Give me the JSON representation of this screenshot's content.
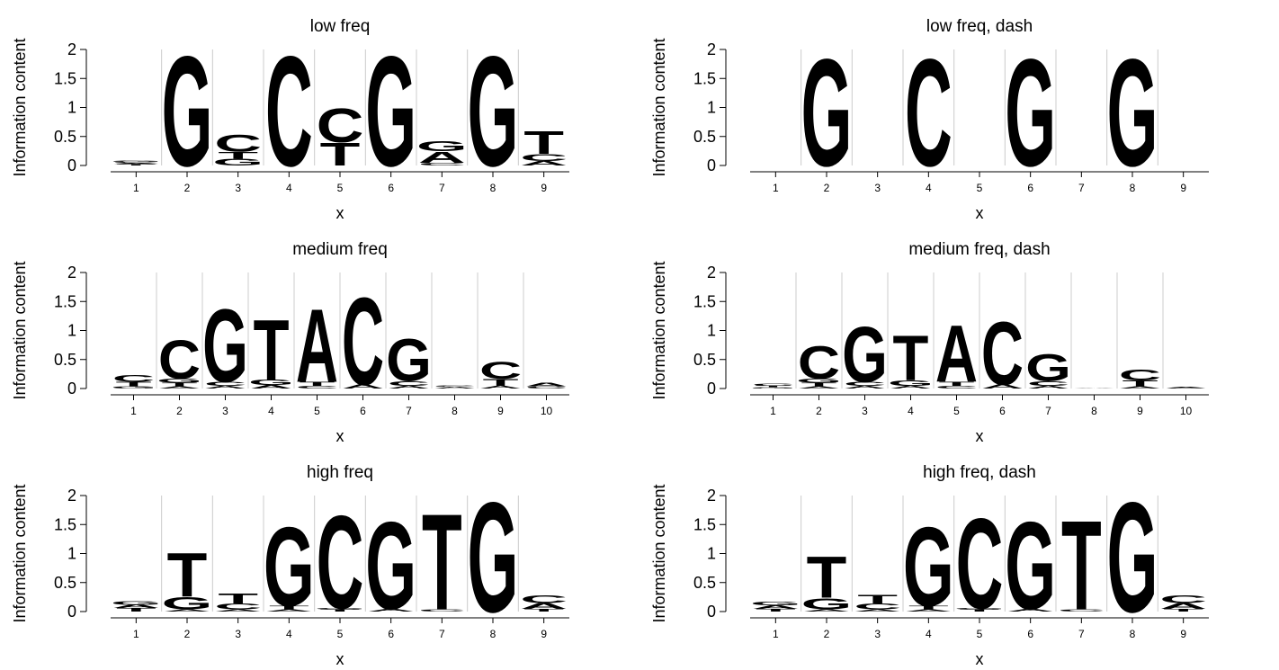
{
  "colors": {
    "A": "#d7191c",
    "C": "#fdae61",
    "G": "#a6d96a",
    "T": "#2b83ba",
    "sep": "#cccccc",
    "axis": "#000000"
  },
  "chart_data": [
    {
      "type": "sequence-logo",
      "title": "low freq",
      "xlabel": "x",
      "ylabel": "Information content",
      "ylim": [
        0,
        2
      ],
      "yticks": [
        "0",
        "0.5",
        "1",
        "1.5",
        "2"
      ],
      "xticks": [
        "1",
        "2",
        "3",
        "4",
        "5",
        "6",
        "7",
        "8",
        "9"
      ],
      "positions": [
        [
          [
            "T",
            0.02
          ],
          [
            "A",
            0.02
          ],
          [
            "C",
            0.02
          ],
          [
            "G",
            0.02
          ]
        ],
        [
          [
            "G",
            1.95
          ]
        ],
        [
          [
            "G",
            0.12
          ],
          [
            "T",
            0.12
          ],
          [
            "C",
            0.3
          ]
        ],
        [
          [
            "C",
            1.95
          ]
        ],
        [
          [
            "T",
            0.4
          ],
          [
            "C",
            0.6
          ]
        ],
        [
          [
            "G",
            1.95
          ]
        ],
        [
          [
            "C",
            0.05
          ],
          [
            "A",
            0.2
          ],
          [
            "G",
            0.18
          ]
        ],
        [
          [
            "G",
            1.95
          ]
        ],
        [
          [
            "A",
            0.08
          ],
          [
            "C",
            0.12
          ],
          [
            "T",
            0.4
          ]
        ]
      ]
    },
    {
      "type": "sequence-logo",
      "title": "low freq, dash",
      "xlabel": "x",
      "ylabel": "Information content",
      "ylim": [
        0,
        2
      ],
      "yticks": [
        "0",
        "0.5",
        "1",
        "1.5",
        "2"
      ],
      "xticks": [
        "1",
        "2",
        "3",
        "4",
        "5",
        "6",
        "7",
        "8",
        "9"
      ],
      "positions": [
        [],
        [
          [
            "G",
            1.9
          ]
        ],
        [],
        [
          [
            "C",
            1.9
          ]
        ],
        [],
        [
          [
            "G",
            1.9
          ]
        ],
        [],
        [
          [
            "G",
            1.9
          ]
        ],
        []
      ]
    },
    {
      "type": "sequence-logo",
      "title": "medium freq",
      "xlabel": "x",
      "ylabel": "Information content",
      "ylim": [
        0,
        2
      ],
      "yticks": [
        "0",
        "0.5",
        "1",
        "1.5",
        "2"
      ],
      "xticks": [
        "1",
        "2",
        "3",
        "4",
        "5",
        "6",
        "7",
        "8",
        "9",
        "10"
      ],
      "positions": [
        [
          [
            "G",
            0.04
          ],
          [
            "T",
            0.08
          ],
          [
            "C",
            0.12
          ]
        ],
        [
          [
            "A",
            0.04
          ],
          [
            "T",
            0.06
          ],
          [
            "G",
            0.07
          ],
          [
            "C",
            0.68
          ]
        ],
        [
          [
            "A",
            0.05
          ],
          [
            "C",
            0.07
          ],
          [
            "G",
            1.3
          ]
        ],
        [
          [
            "A",
            0.06
          ],
          [
            "G",
            0.09
          ],
          [
            "T",
            1.08
          ]
        ],
        [
          [
            "C",
            0.05
          ],
          [
            "T",
            0.07
          ],
          [
            "A",
            1.3
          ]
        ],
        [
          [
            "A",
            0.07
          ],
          [
            "C",
            1.55
          ]
        ],
        [
          [
            "A",
            0.05
          ],
          [
            "C",
            0.08
          ],
          [
            "G",
            0.75
          ]
        ],
        [
          [
            "A",
            0.03
          ],
          [
            "C",
            0.02
          ]
        ],
        [
          [
            "A",
            0.05
          ],
          [
            "T",
            0.12
          ],
          [
            "C",
            0.3
          ]
        ],
        [
          [
            "C",
            0.04
          ],
          [
            "A",
            0.06
          ]
        ]
      ]
    },
    {
      "type": "sequence-logo",
      "title": "medium freq, dash",
      "xlabel": "x",
      "ylabel": "Information content",
      "ylim": [
        0,
        2
      ],
      "yticks": [
        "0",
        "0.5",
        "1",
        "1.5",
        "2"
      ],
      "xticks": [
        "1",
        "2",
        "3",
        "4",
        "5",
        "6",
        "7",
        "8",
        "9",
        "10"
      ],
      "positions": [
        [
          [
            "G",
            0.02
          ],
          [
            "T",
            0.03
          ],
          [
            "C",
            0.04
          ]
        ],
        [
          [
            "A",
            0.04
          ],
          [
            "T",
            0.06
          ],
          [
            "G",
            0.07
          ],
          [
            "C",
            0.58
          ]
        ],
        [
          [
            "A",
            0.05
          ],
          [
            "C",
            0.07
          ],
          [
            "G",
            0.98
          ]
        ],
        [
          [
            "A",
            0.05
          ],
          [
            "G",
            0.09
          ],
          [
            "T",
            0.8
          ]
        ],
        [
          [
            "C",
            0.05
          ],
          [
            "T",
            0.07
          ],
          [
            "A",
            1.0
          ]
        ],
        [
          [
            "A",
            0.07
          ],
          [
            "C",
            1.12
          ]
        ],
        [
          [
            "A",
            0.05
          ],
          [
            "C",
            0.08
          ],
          [
            "G",
            0.48
          ]
        ],
        [
          [
            "A",
            0.01
          ]
        ],
        [
          [
            "A",
            0.04
          ],
          [
            "T",
            0.1
          ],
          [
            "C",
            0.2
          ]
        ],
        [
          [
            "C",
            0.01
          ],
          [
            "A",
            0.02
          ]
        ]
      ]
    },
    {
      "type": "sequence-logo",
      "title": "high freq",
      "xlabel": "x",
      "ylabel": "Information content",
      "ylim": [
        0,
        2
      ],
      "yticks": [
        "0",
        "0.5",
        "1",
        "1.5",
        "2"
      ],
      "xticks": [
        "1",
        "2",
        "3",
        "4",
        "5",
        "6",
        "7",
        "8",
        "9"
      ],
      "positions": [
        [
          [
            "T",
            0.06
          ],
          [
            "A",
            0.06
          ],
          [
            "G",
            0.06
          ]
        ],
        [
          [
            "A",
            0.04
          ],
          [
            "G",
            0.22
          ],
          [
            "T",
            0.78
          ]
        ],
        [
          [
            "A",
            0.04
          ],
          [
            "C",
            0.1
          ],
          [
            "T",
            0.17
          ]
        ],
        [
          [
            "A",
            0.04
          ],
          [
            "T",
            0.06
          ],
          [
            "G",
            1.4
          ]
        ],
        [
          [
            "T",
            0.04
          ],
          [
            "G",
            0.02
          ],
          [
            "C",
            1.65
          ]
        ],
        [
          [
            "A",
            0.05
          ],
          [
            "G",
            1.55
          ]
        ],
        [
          [
            "C",
            0.04
          ],
          [
            "T",
            1.7
          ]
        ],
        [
          [
            "G",
            1.95
          ]
        ],
        [
          [
            "T",
            0.05
          ],
          [
            "A",
            0.1
          ],
          [
            "C",
            0.13
          ]
        ]
      ]
    },
    {
      "type": "sequence-logo",
      "title": "high freq, dash",
      "xlabel": "x",
      "ylabel": "Information content",
      "ylim": [
        0,
        2
      ],
      "yticks": [
        "0",
        "0.5",
        "1",
        "1.5",
        "2"
      ],
      "xticks": [
        "1",
        "2",
        "3",
        "4",
        "5",
        "6",
        "7",
        "8",
        "9"
      ],
      "positions": [
        [
          [
            "T",
            0.05
          ],
          [
            "A",
            0.06
          ],
          [
            "G",
            0.06
          ]
        ],
        [
          [
            "A",
            0.04
          ],
          [
            "G",
            0.2
          ],
          [
            "T",
            0.74
          ]
        ],
        [
          [
            "A",
            0.04
          ],
          [
            "C",
            0.1
          ],
          [
            "T",
            0.15
          ]
        ],
        [
          [
            "A",
            0.04
          ],
          [
            "T",
            0.06
          ],
          [
            "G",
            1.4
          ]
        ],
        [
          [
            "T",
            0.04
          ],
          [
            "G",
            0.02
          ],
          [
            "C",
            1.6
          ]
        ],
        [
          [
            "A",
            0.05
          ],
          [
            "G",
            1.55
          ]
        ],
        [
          [
            "C",
            0.04
          ],
          [
            "T",
            1.58
          ]
        ],
        [
          [
            "G",
            1.95
          ]
        ],
        [
          [
            "T",
            0.05
          ],
          [
            "A",
            0.1
          ],
          [
            "C",
            0.13
          ]
        ]
      ]
    }
  ]
}
